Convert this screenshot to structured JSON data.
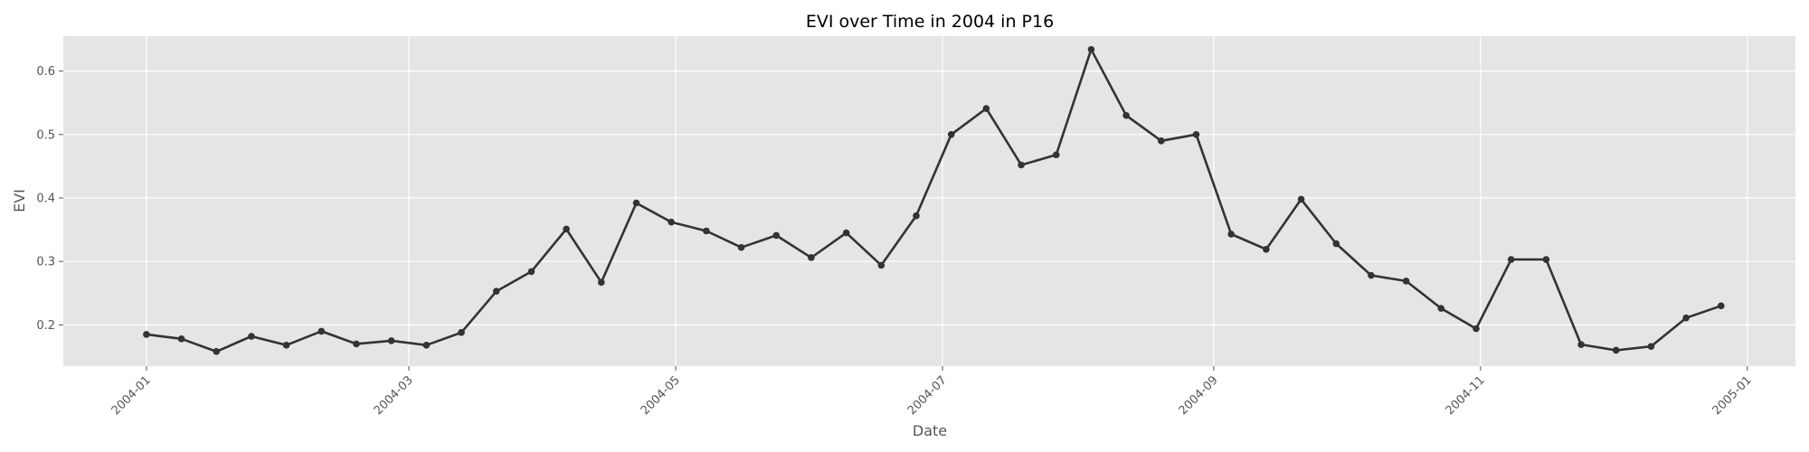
{
  "chart_data": {
    "type": "line",
    "title": "EVI over Time in 2004 in P16",
    "xlabel": "Date",
    "ylabel": "EVI",
    "xlim": [
      "2003-12-13",
      "2005-01-12"
    ],
    "ylim": [
      0.135,
      0.655
    ],
    "grid": true,
    "legend": "none",
    "x_ticks": [
      "2004-01",
      "2004-03",
      "2004-05",
      "2004-07",
      "2004-09",
      "2004-11",
      "2005-01"
    ],
    "x_tick_dates": [
      "2004-01-01",
      "2004-03-01",
      "2004-05-01",
      "2004-07-01",
      "2004-09-01",
      "2004-11-01",
      "2005-01-01"
    ],
    "y_ticks": [
      0.2,
      0.3,
      0.4,
      0.5,
      0.6
    ],
    "colors": {
      "line": "#333333",
      "background": "#e5e5e5",
      "grid": "#ffffff"
    },
    "series": [
      {
        "x": [
          "2004-01-01",
          "2004-01-09",
          "2004-01-17",
          "2004-01-25",
          "2004-02-02",
          "2004-02-10",
          "2004-02-18",
          "2004-02-26",
          "2004-03-05",
          "2004-03-13",
          "2004-03-21",
          "2004-03-29",
          "2004-04-06",
          "2004-04-14",
          "2004-04-22",
          "2004-04-30",
          "2004-05-08",
          "2004-05-16",
          "2004-05-24",
          "2004-06-01",
          "2004-06-09",
          "2004-06-17",
          "2004-06-25",
          "2004-07-03",
          "2004-07-11",
          "2004-07-19",
          "2004-07-27",
          "2004-08-04",
          "2004-08-12",
          "2004-08-20",
          "2004-08-28",
          "2004-09-05",
          "2004-09-13",
          "2004-09-21",
          "2004-09-29",
          "2004-10-07",
          "2004-10-15",
          "2004-10-23",
          "2004-10-31",
          "2004-11-08",
          "2004-11-16",
          "2004-11-24",
          "2004-12-02",
          "2004-12-10",
          "2004-12-18",
          "2004-12-26"
        ],
        "values": [
          0.185,
          0.178,
          0.158,
          0.182,
          0.168,
          0.19,
          0.17,
          0.175,
          0.168,
          0.188,
          0.253,
          0.284,
          0.351,
          0.267,
          0.392,
          0.362,
          0.348,
          0.322,
          0.341,
          0.306,
          0.345,
          0.294,
          0.372,
          0.5,
          0.541,
          0.452,
          0.468,
          0.634,
          0.53,
          0.49,
          0.5,
          0.343,
          0.319,
          0.398,
          0.328,
          0.278,
          0.269,
          0.226,
          0.194,
          0.303,
          0.303,
          0.169,
          0.16,
          0.166,
          0.211,
          0.23
        ]
      }
    ]
  }
}
